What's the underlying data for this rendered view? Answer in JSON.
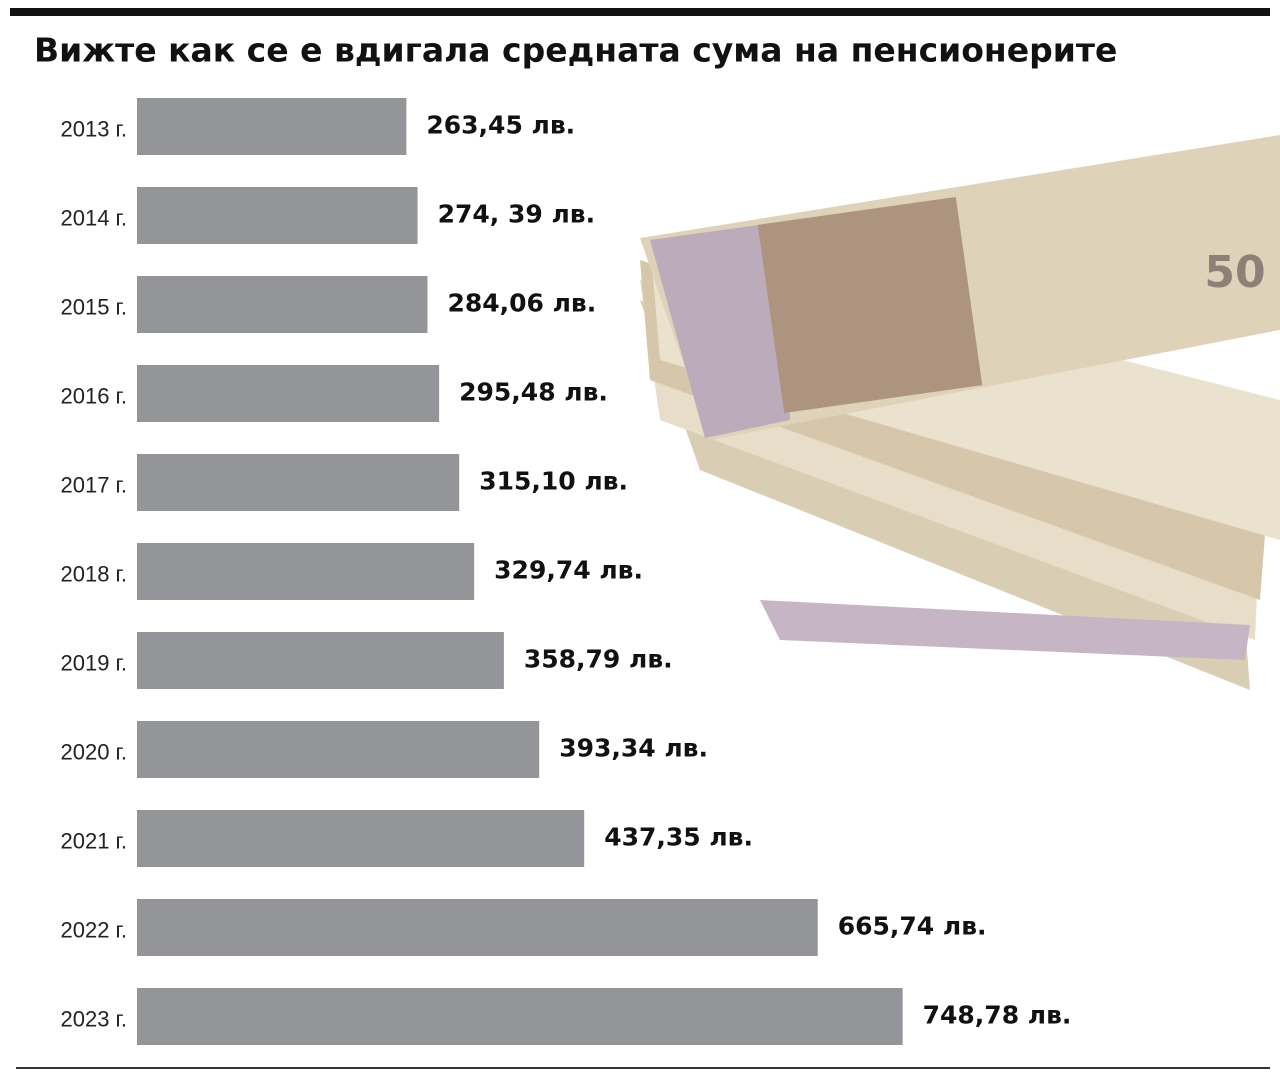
{
  "chart_data": {
    "type": "bar",
    "orientation": "horizontal",
    "title": "Вижте как се е вдигала средната сума на пенсионерите",
    "categories": [
      "2013 г.",
      "2014 г.",
      "2015 г.",
      "2016 г.",
      "2017 г.",
      "2018 г.",
      "2019 г.",
      "2020 г.",
      "2021 г.",
      "2022 г.",
      "2023 г."
    ],
    "values": [
      263.45,
      274.39,
      284.06,
      295.48,
      315.1,
      329.74,
      358.79,
      393.34,
      437.35,
      665.74,
      748.78
    ],
    "value_labels": [
      "263,45 лв.",
      "274, 39 лв.",
      "284,06 лв.",
      "295,48 лв.",
      "315,10 лв.",
      "329,74 лв.",
      "358,79 лв.",
      "393,34 лв.",
      "437,35 лв.",
      "665,74 лв.",
      "748,78 лв."
    ],
    "color": "#939598"
  }
}
